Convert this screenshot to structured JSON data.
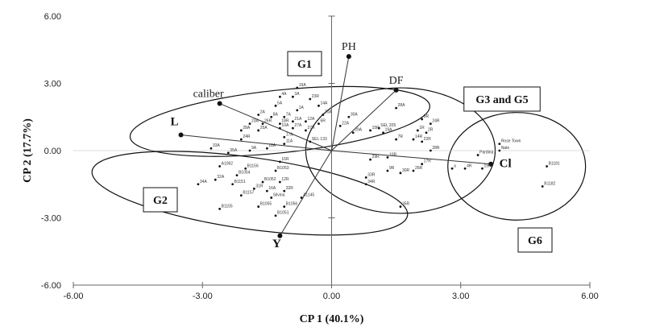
{
  "chart_data": {
    "type": "scatter",
    "subtype": "pca-biplot",
    "title": "",
    "xlabel": "CP 1 (40.1%)",
    "ylabel": "CP 2 (17.7%)",
    "xlim": [
      -6,
      6
    ],
    "ylim": [
      -6,
      6
    ],
    "xticks": [
      "-6.00",
      "-3.00",
      "0.00",
      "3.00",
      "6.00"
    ],
    "yticks": [
      "6.00",
      "3.00",
      "0.00",
      "-3.00",
      "-6.00"
    ],
    "grid": false,
    "variables": [
      {
        "name": "PH",
        "x": 0.4,
        "y": 4.2,
        "bold": false
      },
      {
        "name": "DF",
        "x": 1.5,
        "y": 2.7,
        "bold": false
      },
      {
        "name": "caliber",
        "x": -2.6,
        "y": 2.1,
        "bold": false
      },
      {
        "name": "L",
        "x": -3.5,
        "y": 0.7,
        "bold": true
      },
      {
        "name": "Y",
        "x": -1.2,
        "y": -3.8,
        "bold": true
      },
      {
        "name": "Cl",
        "x": 3.7,
        "y": -0.6,
        "bold": true
      }
    ],
    "groups": [
      {
        "name": "G1",
        "center": [
          -1.2,
          1.3
        ],
        "rx": 3.5,
        "ry": 1.4
      },
      {
        "name": "G2",
        "center": [
          -1.9,
          -1.9
        ],
        "rx": 3.7,
        "ry": 1.6
      },
      {
        "name": "G3 and G5",
        "center": [
          1.6,
          0.0
        ],
        "rx": 2.2,
        "ry": 2.8
      },
      {
        "name": "G6",
        "center": [
          4.3,
          -0.7
        ],
        "rx": 1.6,
        "ry": 2.4
      }
    ],
    "points": [
      {
        "label": "19A",
        "x": -0.8,
        "y": 2.8
      },
      {
        "label": "4A",
        "x": -1.2,
        "y": 2.4
      },
      {
        "label": "3A",
        "x": -0.9,
        "y": 2.4
      },
      {
        "label": "23R",
        "x": -0.5,
        "y": 2.3
      },
      {
        "label": "5A",
        "x": -1.3,
        "y": 2.0
      },
      {
        "label": "1A",
        "x": -0.8,
        "y": 1.8
      },
      {
        "label": "14A",
        "x": -0.3,
        "y": 2.0
      },
      {
        "label": "2A",
        "x": -1.7,
        "y": 1.6
      },
      {
        "label": "8A",
        "x": -1.4,
        "y": 1.5
      },
      {
        "label": "7A",
        "x": -1.1,
        "y": 1.5
      },
      {
        "label": "20A",
        "x": -0.2,
        "y": 1.6
      },
      {
        "label": "23A",
        "x": -1.9,
        "y": 1.2
      },
      {
        "label": "26R",
        "x": -1.6,
        "y": 1.2
      },
      {
        "label": "18R",
        "x": -1.2,
        "y": 1.2
      },
      {
        "label": "21A",
        "x": -0.9,
        "y": 1.3
      },
      {
        "label": "12A",
        "x": -0.6,
        "y": 1.3
      },
      {
        "label": "6R",
        "x": -0.3,
        "y": 1.2
      },
      {
        "label": "28A",
        "x": -2.1,
        "y": 0.9
      },
      {
        "label": "25A",
        "x": -1.7,
        "y": 0.9
      },
      {
        "label": "10A",
        "x": -1.2,
        "y": 1.0
      },
      {
        "label": "27A",
        "x": -0.9,
        "y": 1.0
      },
      {
        "label": "27R",
        "x": -0.6,
        "y": 0.9
      },
      {
        "label": "22A",
        "x": 0.2,
        "y": 1.1
      },
      {
        "label": "30A",
        "x": 0.4,
        "y": 1.5
      },
      {
        "label": "24R",
        "x": -2.1,
        "y": 0.5
      },
      {
        "label": "17A",
        "x": -1.1,
        "y": 0.6
      },
      {
        "label": "11A",
        "x": -1.1,
        "y": 0.3
      },
      {
        "label": "SEL 133",
        "x": -0.5,
        "y": 0.4
      },
      {
        "label": "29A",
        "x": 0.5,
        "y": 0.8
      },
      {
        "label": "33A",
        "x": -2.8,
        "y": 0.1
      },
      {
        "label": "35A",
        "x": -2.4,
        "y": -0.1
      },
      {
        "label": "9A",
        "x": -1.9,
        "y": 0.0
      },
      {
        "label": "18A",
        "x": -1.5,
        "y": 0.1
      },
      {
        "label": "16R",
        "x": -1.2,
        "y": -0.5
      },
      {
        "label": "A1062",
        "x": -2.6,
        "y": -0.7
      },
      {
        "label": "B1156",
        "x": -2.0,
        "y": -0.8
      },
      {
        "label": "B1053",
        "x": -1.3,
        "y": -0.9
      },
      {
        "label": "34A",
        "x": -3.1,
        "y": -1.5
      },
      {
        "label": "32A",
        "x": -2.7,
        "y": -1.3
      },
      {
        "label": "B1054",
        "x": -2.2,
        "y": -1.1
      },
      {
        "label": "B1052",
        "x": -1.6,
        "y": -1.4
      },
      {
        "label": "12R",
        "x": -1.2,
        "y": -1.4
      },
      {
        "label": "B1151",
        "x": -2.3,
        "y": -1.5
      },
      {
        "label": "31R",
        "x": -1.8,
        "y": -1.7
      },
      {
        "label": "16A",
        "x": -1.5,
        "y": -1.8
      },
      {
        "label": "32R",
        "x": -1.1,
        "y": -1.8
      },
      {
        "label": "B1157",
        "x": -2.1,
        "y": -2.0
      },
      {
        "label": "Silvina",
        "x": -1.4,
        "y": -2.1
      },
      {
        "label": "A1145",
        "x": -0.7,
        "y": -2.1
      },
      {
        "label": "B1055",
        "x": -1.7,
        "y": -2.5
      },
      {
        "label": "B1056",
        "x": -1.1,
        "y": -2.5
      },
      {
        "label": "B1155",
        "x": -2.6,
        "y": -2.6
      },
      {
        "label": "B1051",
        "x": -1.3,
        "y": -2.9
      },
      {
        "label": "28A",
        "x": 1.5,
        "y": 1.9
      },
      {
        "label": "SEL 205",
        "x": 1.1,
        "y": 1.0
      },
      {
        "label": "3R",
        "x": 2.1,
        "y": 1.4
      },
      {
        "label": "24R",
        "x": 2.3,
        "y": 1.2
      },
      {
        "label": "19A",
        "x": 1.2,
        "y": 0.8
      },
      {
        "label": "15R",
        "x": 0.9,
        "y": 0.9
      },
      {
        "label": "1R",
        "x": 2.0,
        "y": 0.9
      },
      {
        "label": "2R",
        "x": 2.2,
        "y": 0.8
      },
      {
        "label": "7R",
        "x": 1.5,
        "y": 0.5
      },
      {
        "label": "14R",
        "x": 1.9,
        "y": 0.5
      },
      {
        "label": "22R",
        "x": 2.1,
        "y": 0.4
      },
      {
        "label": "28R",
        "x": 2.3,
        "y": 0.0
      },
      {
        "label": "10R",
        "x": 1.3,
        "y": -0.3
      },
      {
        "label": "29R",
        "x": 0.9,
        "y": -0.4
      },
      {
        "label": "17R",
        "x": 2.1,
        "y": -0.6
      },
      {
        "label": "9R",
        "x": 1.3,
        "y": -0.9
      },
      {
        "label": "30R",
        "x": 1.6,
        "y": -1.0
      },
      {
        "label": "26R",
        "x": 1.9,
        "y": -0.9
      },
      {
        "label": "33R",
        "x": 0.8,
        "y": -1.2
      },
      {
        "label": "34R",
        "x": 0.8,
        "y": -1.5
      },
      {
        "label": "35R",
        "x": 1.6,
        "y": -2.5
      },
      {
        "label": "a",
        "x": 2.8,
        "y": -0.8
      },
      {
        "label": "Rose Town",
        "x": 3.9,
        "y": 0.3
      },
      {
        "label": "Nale",
        "x": 3.9,
        "y": 0.0
      },
      {
        "label": "Pardina",
        "x": 3.4,
        "y": -0.2
      },
      {
        "label": "4R",
        "x": 3.1,
        "y": -0.8
      },
      {
        "label": "19R",
        "x": 3.5,
        "y": -0.8
      },
      {
        "label": "B1181",
        "x": 5.0,
        "y": -0.7
      },
      {
        "label": "B1182",
        "x": 4.9,
        "y": -1.6
      }
    ]
  }
}
